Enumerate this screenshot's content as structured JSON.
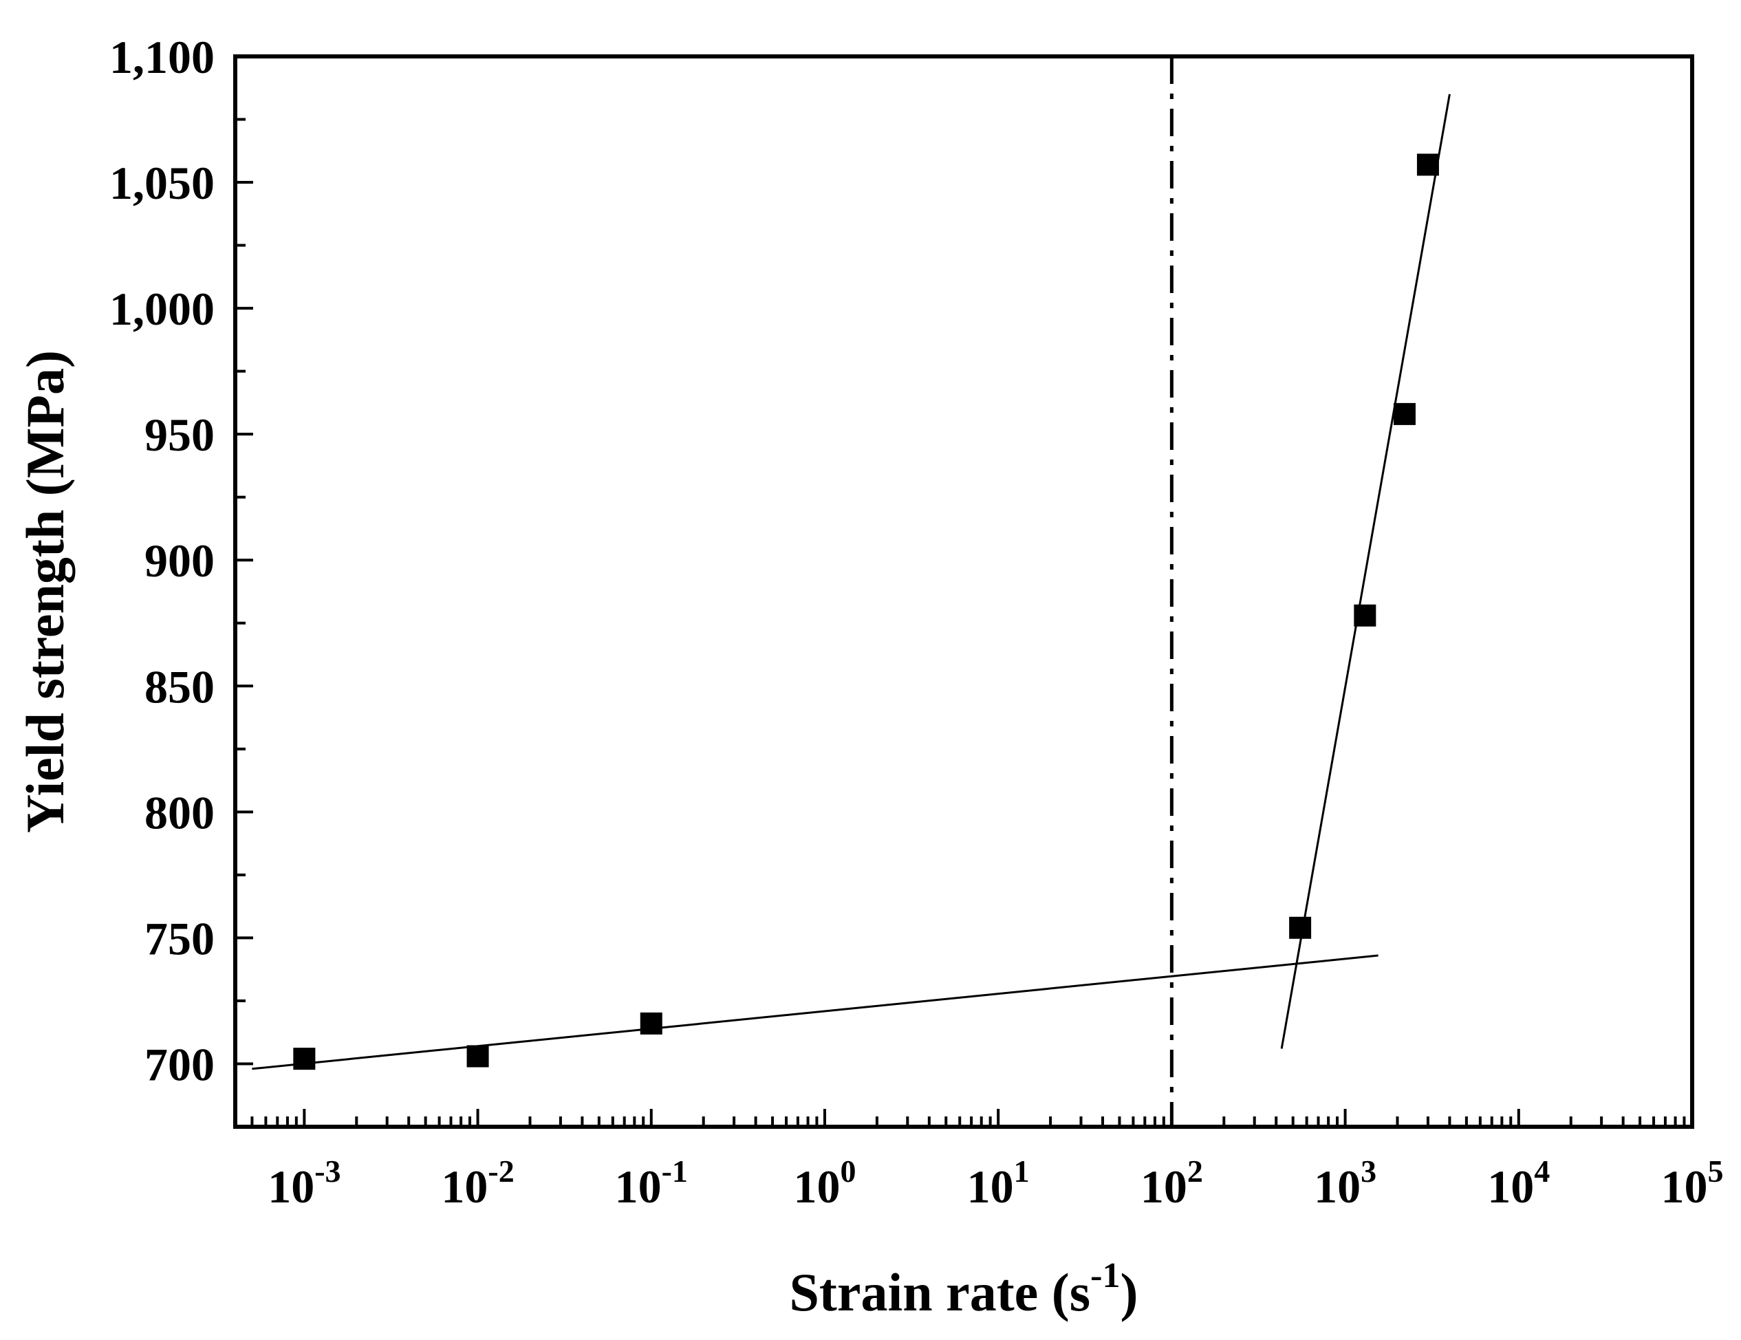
{
  "chart_data": {
    "type": "scatter",
    "title": "",
    "xlabel_main": "Strain rate (s",
    "xlabel_sup": "-1",
    "xlabel_tail": ")",
    "ylabel": "Yield strength (MPa)",
    "x_scale": "log",
    "xlim": [
      0.0004,
      100000
    ],
    "ylim": [
      675,
      1100
    ],
    "x_ticks": [
      {
        "base": "10",
        "exp": "-3",
        "value": 0.001
      },
      {
        "base": "10",
        "exp": "-2",
        "value": 0.01
      },
      {
        "base": "10",
        "exp": "-1",
        "value": 0.1
      },
      {
        "base": "10",
        "exp": "0",
        "value": 1
      },
      {
        "base": "10",
        "exp": "1",
        "value": 10
      },
      {
        "base": "10",
        "exp": "2",
        "value": 100
      },
      {
        "base": "10",
        "exp": "3",
        "value": 1000
      },
      {
        "base": "10",
        "exp": "4",
        "value": 10000
      },
      {
        "base": "10",
        "exp": "5",
        "value": 100000
      }
    ],
    "y_ticks": [
      {
        "label": "700",
        "value": 700
      },
      {
        "label": "750",
        "value": 750
      },
      {
        "label": "800",
        "value": 800
      },
      {
        "label": "850",
        "value": 850
      },
      {
        "label": "900",
        "value": 900
      },
      {
        "label": "950",
        "value": 950
      },
      {
        "label": "1,000",
        "value": 1000
      },
      {
        "label": "1,050",
        "value": 1050
      },
      {
        "label": "1,100",
        "value": 1100
      }
    ],
    "series": [
      {
        "marker": "square",
        "color": "#000000",
        "points": [
          {
            "x": 0.001,
            "y": 702
          },
          {
            "x": 0.01,
            "y": 703
          },
          {
            "x": 0.1,
            "y": 716
          },
          {
            "x": 550,
            "y": 754
          },
          {
            "x": 1300,
            "y": 878
          },
          {
            "x": 2200,
            "y": 958
          },
          {
            "x": 3000,
            "y": 1057
          }
        ]
      }
    ],
    "fit_lines": [
      {
        "x1": 0.0005,
        "y1": 698,
        "x2": 1550,
        "y2": 743
      },
      {
        "x1": 430,
        "y1": 706,
        "x2": 4000,
        "y2": 1085
      }
    ],
    "reference_line": {
      "x": 100,
      "style": "dash-dot"
    },
    "grid": false,
    "legend": "none"
  }
}
